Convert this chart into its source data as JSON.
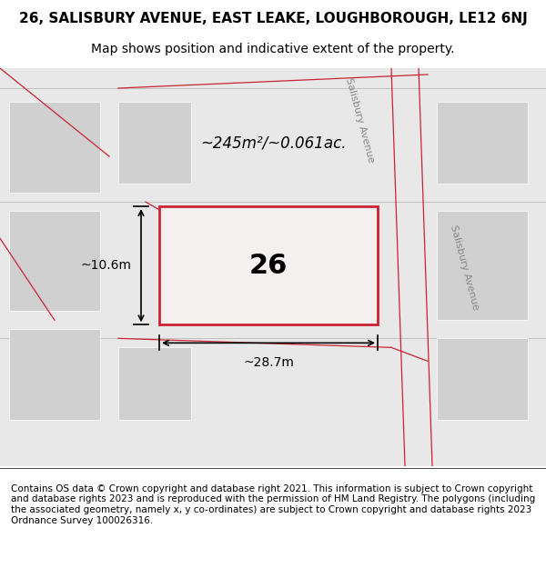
{
  "title_line1": "26, SALISBURY AVENUE, EAST LEAKE, LOUGHBOROUGH, LE12 6NJ",
  "title_line2": "Map shows position and indicative extent of the property.",
  "footer_text": "Contains OS data © Crown copyright and database right 2021. This information is subject to Crown copyright and database rights 2023 and is reproduced with the permission of HM Land Registry. The polygons (including the associated geometry, namely x, y co-ordinates) are subject to Crown copyright and database rights 2023 Ordnance Survey 100026316.",
  "map_bg_color": "#e8e8e8",
  "block_color": "#d0d0d0",
  "road_line_color": "#c8c8c8",
  "highlight_color": "#cc2233",
  "highlight_fill": "#f5f0f0",
  "plot_label": "26",
  "area_text": "~245m²/~0.061ac.",
  "width_text": "~28.7m",
  "height_text": "~10.6m",
  "road_label": "Salisbury Avenue",
  "title_fontsize": 11,
  "subtitle_fontsize": 10,
  "footer_fontsize": 7.5
}
